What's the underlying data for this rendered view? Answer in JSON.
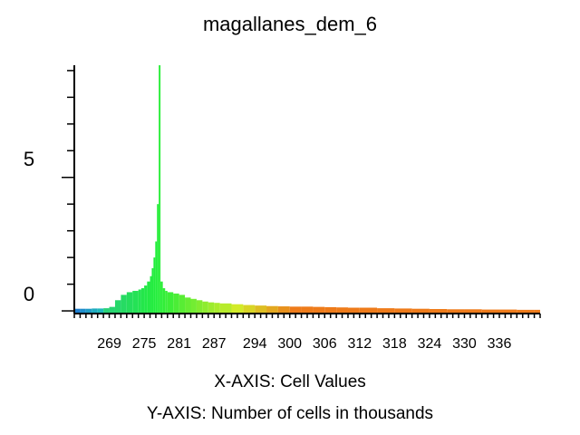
{
  "chart_data": {
    "type": "bar",
    "title": "magallanes_dem_6",
    "xlabel": "X-AXIS: Cell Values",
    "ylabel": "Y-AXIS: Number of cells in thousands",
    "x_ticks": [
      "269",
      "275",
      "281",
      "287",
      "294",
      "300",
      "306",
      "312",
      "318",
      "324",
      "330",
      "336"
    ],
    "y_ticks": [
      "0",
      "5"
    ],
    "xlim": [
      263,
      343
    ],
    "ylim": [
      -0.1,
      9.2
    ],
    "grid": false,
    "legend": "none",
    "series": [
      {
        "x": [
          263,
          264,
          265,
          266,
          267,
          268,
          269,
          270,
          271,
          272,
          273,
          274,
          274.5,
          275,
          275.5,
          276,
          276.3,
          276.6,
          276.9,
          277.2,
          277.5,
          277.8,
          278.2,
          278.6,
          279,
          280,
          281,
          282,
          283,
          284,
          285,
          286,
          287,
          288,
          290,
          292,
          294,
          296,
          298,
          300,
          302,
          304,
          306,
          308,
          310,
          312,
          315,
          318,
          321,
          324,
          327,
          330,
          333,
          336,
          339,
          342
        ],
        "values": [
          0.08,
          0.08,
          0.08,
          0.09,
          0.09,
          0.1,
          0.15,
          0.4,
          0.6,
          0.7,
          0.75,
          0.8,
          0.85,
          0.95,
          1.1,
          1.3,
          1.6,
          2.0,
          2.6,
          4.0,
          9.2,
          1.1,
          0.85,
          0.75,
          0.7,
          0.65,
          0.6,
          0.5,
          0.45,
          0.4,
          0.35,
          0.32,
          0.3,
          0.28,
          0.25,
          0.22,
          0.2,
          0.18,
          0.17,
          0.16,
          0.16,
          0.15,
          0.14,
          0.13,
          0.12,
          0.12,
          0.1,
          0.09,
          0.08,
          0.07,
          0.06,
          0.06,
          0.05,
          0.05,
          0.04,
          0.04
        ]
      }
    ],
    "colors": {
      "low": "#1f7fd0",
      "mid": "#22ee3a",
      "high": "#ee7b1a",
      "axis": "#000000"
    }
  }
}
